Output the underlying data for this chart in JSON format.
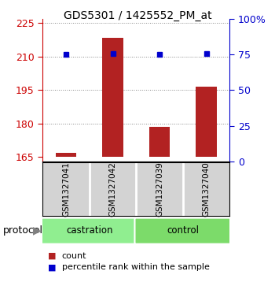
{
  "title": "GDS5301 / 1425552_PM_at",
  "samples": [
    "GSM1327041",
    "GSM1327042",
    "GSM1327039",
    "GSM1327040"
  ],
  "bar_values": [
    167.0,
    218.5,
    178.5,
    196.5
  ],
  "bar_baseline": 165,
  "percentile_values": [
    211.0,
    211.5,
    211.0,
    211.5
  ],
  "bar_color": "#b22222",
  "dot_color": "#0000cd",
  "ylim_left": [
    163,
    227
  ],
  "ylim_right": [
    0,
    100
  ],
  "yticks_left": [
    165,
    180,
    195,
    210,
    225
  ],
  "yticks_right": [
    0,
    25,
    50,
    75,
    100
  ],
  "ytick_labels_right": [
    "0",
    "25",
    "50",
    "75",
    "100%"
  ],
  "protocols": [
    {
      "label": "castration",
      "indices": [
        0,
        1
      ],
      "color": "#90EE90"
    },
    {
      "label": "control",
      "indices": [
        2,
        3
      ],
      "color": "#7CDB6A"
    }
  ],
  "left_axis_color": "#cc0000",
  "right_axis_color": "#0000cc",
  "grid_color": "#888888",
  "bg_color": "#ffffff",
  "sample_box_color": "#d3d3d3",
  "bar_width": 0.45,
  "protocol_box_color": "#90EE90",
  "legend_red_label": "count",
  "legend_blue_label": "percentile rank within the sample"
}
